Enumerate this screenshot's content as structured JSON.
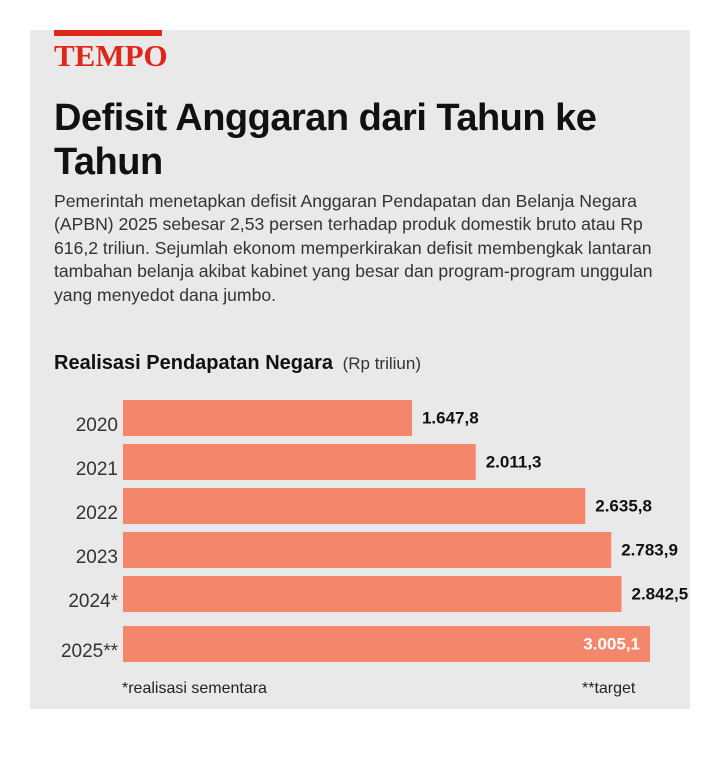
{
  "brand": {
    "logo": "TEMPO",
    "accent": "#e0261b"
  },
  "header": {
    "title": "Defisit Anggaran dari Tahun ke Tahun",
    "description": "Pemerintah menetapkan defisit Anggaran Pendapatan dan Belanja Negara (APBN) 2025 sebesar 2,53 persen terhadap produk domestik bruto atau Rp 616,2 triliun. Sejumlah ekonom memperkirakan defisit membengkak lantaran tambahan belanja akibat kabinet yang besar dan program-program unggulan yang menyedot dana jumbo."
  },
  "chart_heading": {
    "title": "Realisasi Pendapatan Negara",
    "unit": "(Rp triliun)"
  },
  "notes": {
    "left": "*realisasi sementara",
    "right": "**target"
  },
  "colors": {
    "bar": "#f4876b",
    "background": "#e9e9e9"
  },
  "chart_data": {
    "type": "bar",
    "orientation": "horizontal",
    "categories": [
      "2020",
      "2021",
      "2022",
      "2023",
      "2024*",
      "2025**"
    ],
    "values": [
      1647.8,
      2011.3,
      2635.8,
      2783.9,
      2842.5,
      3005.1
    ],
    "value_labels": [
      "1.647,8",
      "2.011,3",
      "2.635,8",
      "2.783,9",
      "2.842,5",
      "3.005,1"
    ],
    "title": "Realisasi Pendapatan Negara",
    "unit": "(Rp triliun)",
    "xlim": [
      0,
      3005.1
    ],
    "grid": false
  }
}
